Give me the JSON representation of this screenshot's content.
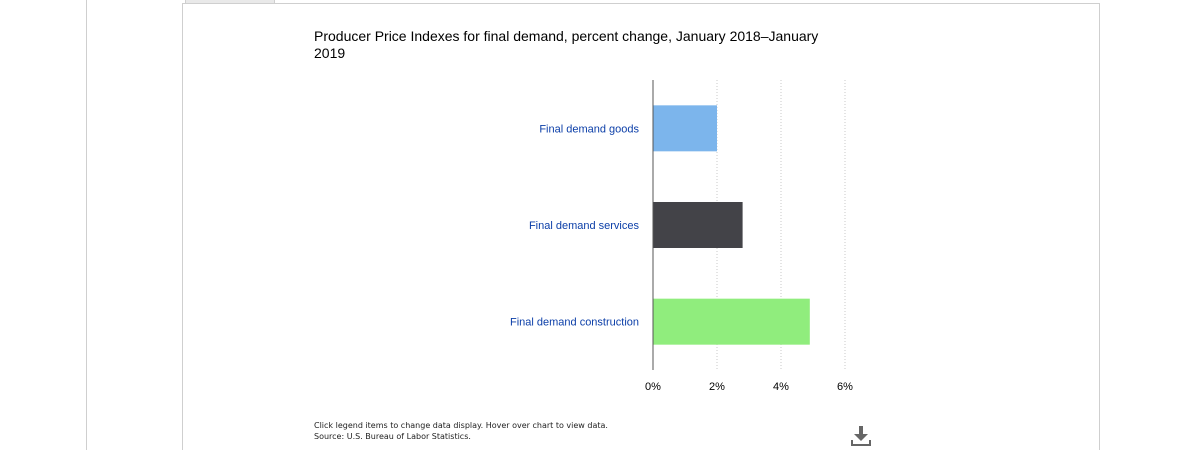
{
  "page": {
    "footnote_line1": "Click legend items to change data display. Hover over chart to view data.",
    "footnote_line2": "Source: U.S. Bureau of Labor Statistics."
  },
  "icons": {
    "download": "download-icon"
  },
  "chart_data": {
    "type": "bar",
    "orientation": "horizontal",
    "title": "Producer Price Indexes for final demand, percent change, January 2018–January 2019",
    "categories": [
      "Final demand goods",
      "Final demand services",
      "Final demand construction"
    ],
    "values": [
      2.0,
      2.8,
      4.9
    ],
    "colors": [
      "#7cb5ec",
      "#434348",
      "#90ed7d"
    ],
    "xlim": [
      0,
      6
    ],
    "x_ticks": [
      0,
      2,
      4,
      6
    ],
    "x_tick_labels": [
      "0%",
      "2%",
      "4%",
      "6%"
    ],
    "grid": "vertical dotted",
    "xlabel": "",
    "ylabel": ""
  }
}
